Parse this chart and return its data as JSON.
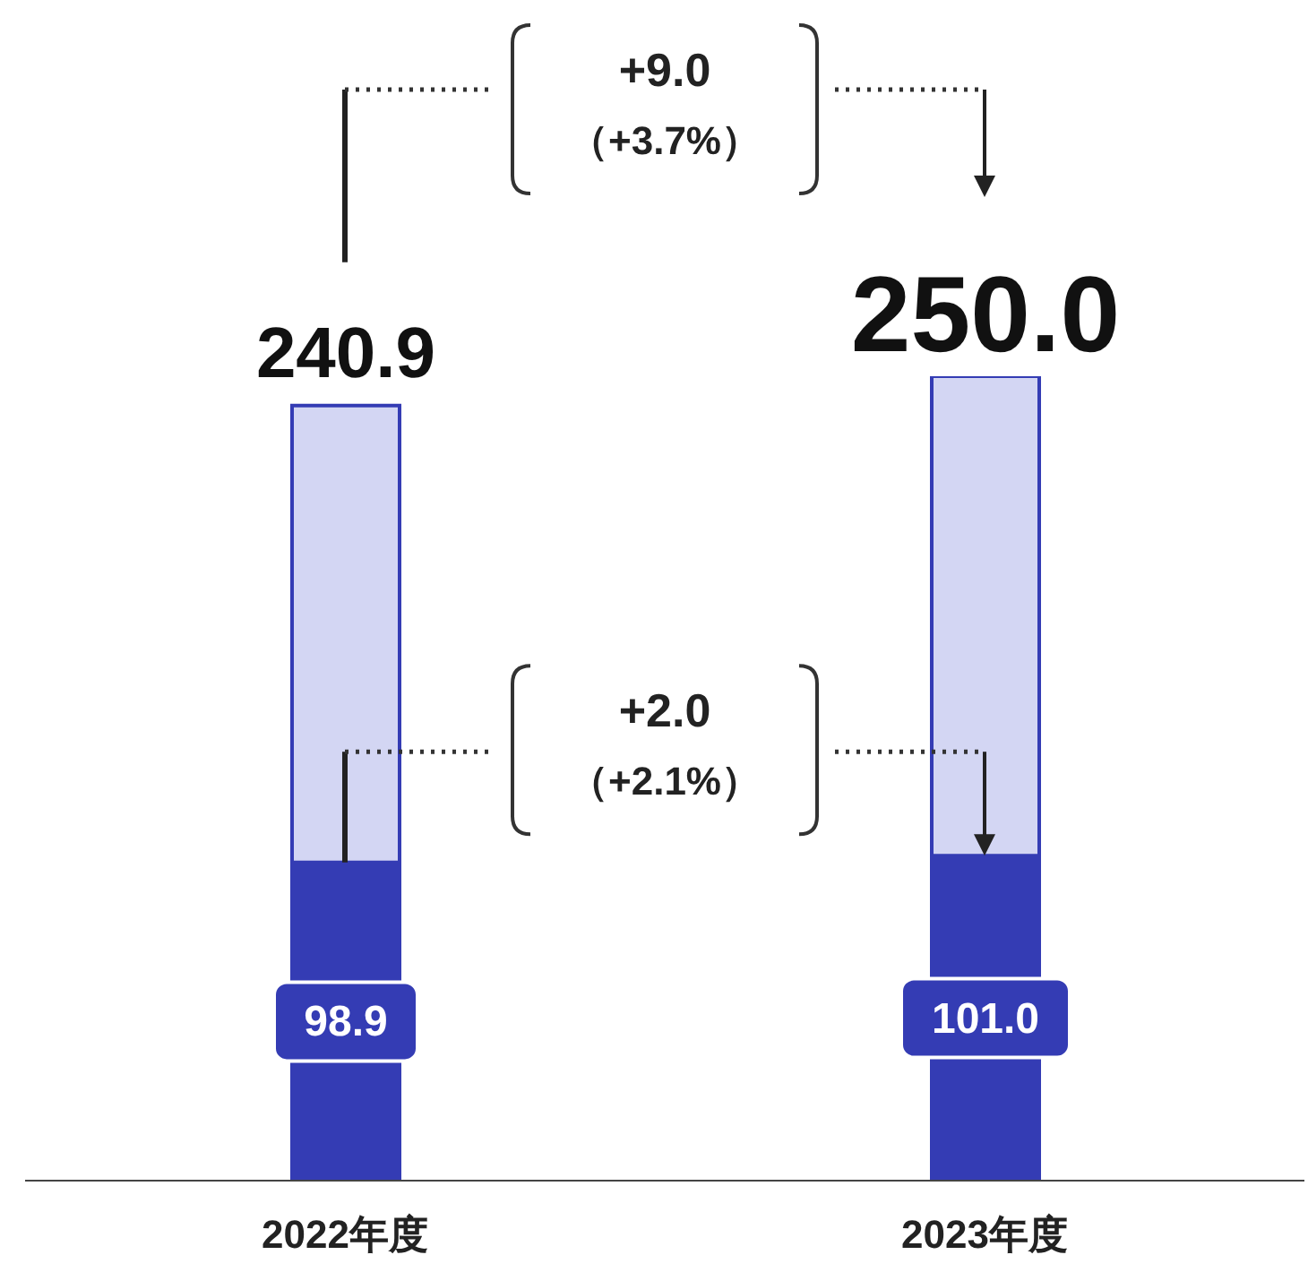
{
  "chart_data": {
    "type": "bar",
    "stacked": true,
    "categories": [
      "2022年度",
      "2023年度"
    ],
    "series": [
      {
        "color": "#343cb4",
        "values": [
          98.9,
          101.0
        ],
        "value_labels": [
          "98.9",
          "101.0"
        ]
      },
      {
        "color": "#d3d6f3",
        "values": [
          142.0,
          149.0
        ]
      }
    ],
    "totals": [
      "240.9",
      "250.0"
    ],
    "annotations": [
      "+9.0",
      "（+3.7%）",
      "+2.0",
      "（+2.1%）"
    ],
    "legend": false,
    "grid": false
  }
}
